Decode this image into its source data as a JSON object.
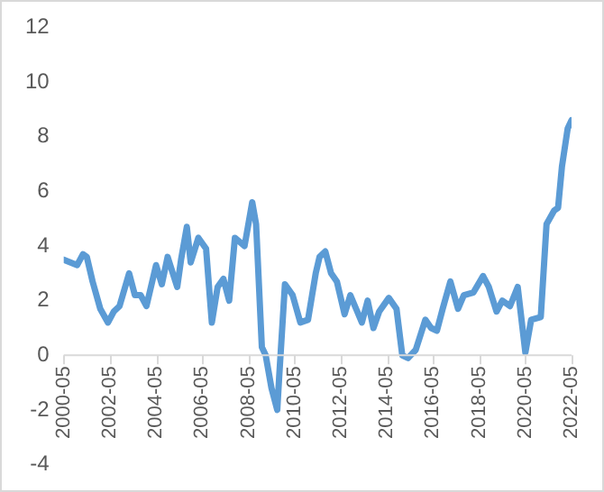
{
  "chart_data": {
    "type": "line",
    "color": "#5b9bd5",
    "x": [
      "2000-05",
      "2000-12",
      "2001-03",
      "2001-05",
      "2001-08",
      "2001-12",
      "2002-04",
      "2002-07",
      "2002-10",
      "2003-03",
      "2003-06",
      "2003-09",
      "2003-12",
      "2004-05",
      "2004-08",
      "2004-11",
      "2005-04",
      "2005-06",
      "2005-09",
      "2005-11",
      "2006-03",
      "2006-07",
      "2006-10",
      "2007-01",
      "2007-04",
      "2007-07",
      "2007-10",
      "2008-03",
      "2008-07",
      "2008-09",
      "2008-12",
      "2009-02",
      "2009-05",
      "2009-08",
      "2009-09",
      "2009-12",
      "2010-04",
      "2010-08",
      "2010-12",
      "2011-04",
      "2011-06",
      "2011-09",
      "2011-12",
      "2012-03",
      "2012-07",
      "2012-10",
      "2013-01",
      "2013-04",
      "2013-07",
      "2013-10",
      "2014-01",
      "2014-06",
      "2014-10",
      "2015-01",
      "2015-04",
      "2015-08",
      "2016-01",
      "2016-04",
      "2016-07",
      "2016-10",
      "2017-02",
      "2017-06",
      "2017-09",
      "2018-02",
      "2018-07",
      "2018-10",
      "2019-02",
      "2019-05",
      "2019-09",
      "2020-01",
      "2020-05",
      "2020-08",
      "2021-01",
      "2021-04",
      "2021-08",
      "2021-10",
      "2021-12",
      "2022-03",
      "2022-05"
    ],
    "values": [
      3.5,
      3.3,
      3.7,
      3.6,
      2.7,
      1.7,
      1.2,
      1.6,
      1.8,
      3.0,
      2.2,
      2.2,
      1.8,
      3.3,
      2.6,
      3.6,
      2.5,
      3.5,
      4.7,
      3.4,
      4.3,
      3.9,
      1.2,
      2.5,
      2.8,
      2.0,
      4.3,
      4.0,
      5.6,
      4.8,
      0.3,
      0.0,
      -1.2,
      -2.0,
      -0.8,
      2.6,
      2.2,
      1.2,
      1.3,
      3.0,
      3.6,
      3.8,
      3.0,
      2.7,
      1.5,
      2.2,
      1.7,
      1.2,
      2.0,
      1.0,
      1.6,
      2.1,
      1.7,
      0.0,
      -0.1,
      0.2,
      1.3,
      1.0,
      0.9,
      1.7,
      2.7,
      1.7,
      2.2,
      2.3,
      2.9,
      2.5,
      1.6,
      2.0,
      1.8,
      2.5,
      0.1,
      1.3,
      1.4,
      4.8,
      5.3,
      5.4,
      6.9,
      8.3,
      8.6
    ],
    "xlim": [
      "2000-05",
      "2022-05"
    ],
    "xticks": [
      "2000-05",
      "2002-05",
      "2004-05",
      "2006-05",
      "2008-05",
      "2010-05",
      "2012-05",
      "2014-05",
      "2016-05",
      "2018-05",
      "2020-05",
      "2022-05"
    ],
    "ylim": [
      -4,
      12
    ],
    "yticks": [
      -4,
      -2,
      0,
      2,
      4,
      6,
      8,
      10,
      12
    ]
  }
}
